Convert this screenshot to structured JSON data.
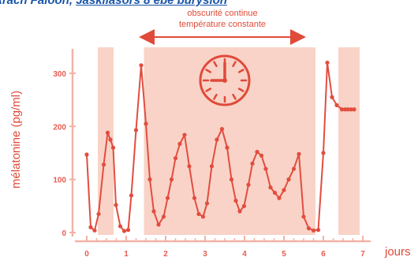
{
  "header": {
    "name": "Arach Faloon,",
    "rest": "Jaskilasors 8 ebe burysion"
  },
  "chart_data": {
    "type": "line",
    "title": "",
    "xlabel": "jours",
    "ylabel": "mélatonine (pg/ml)",
    "xlim": [
      -0.3,
      7.2
    ],
    "ylim": [
      -10,
      360
    ],
    "x_ticks": [
      0,
      1,
      2,
      3,
      4,
      5,
      6,
      7
    ],
    "x_tick_labels": [
      "0",
      "1",
      "2",
      "3",
      "4",
      "5",
      "6",
      "7"
    ],
    "y_ticks": [
      0,
      100,
      200,
      300
    ],
    "y_tick_labels": [
      "0",
      "100",
      "200",
      "300"
    ],
    "shaded_intervals_x": [
      [
        0.28,
        0.68
      ],
      [
        1.45,
        5.8
      ],
      [
        6.38,
        6.92
      ]
    ],
    "annotation": {
      "line1": "obscurité continue",
      "line2": "température constante",
      "x_range": [
        1.45,
        5.8
      ]
    },
    "series": [
      {
        "color": "#e24d3f",
        "x": [
          0.0,
          0.1,
          0.2,
          0.3,
          0.43,
          0.53,
          0.6,
          0.67,
          0.74,
          0.85,
          0.95,
          1.05,
          1.13,
          1.25,
          1.38,
          1.5,
          1.6,
          1.7,
          1.82,
          1.95,
          2.05,
          2.15,
          2.25,
          2.36,
          2.48,
          2.6,
          2.73,
          2.84,
          2.95,
          3.05,
          3.17,
          3.3,
          3.43,
          3.56,
          3.67,
          3.78,
          3.88,
          3.99,
          4.1,
          4.2,
          4.32,
          4.43,
          4.54,
          4.66,
          4.77,
          4.88,
          5.0,
          5.12,
          5.25,
          5.38,
          5.5,
          5.63,
          5.75,
          5.87,
          6.0,
          6.1,
          6.22,
          6.34,
          6.47,
          6.55,
          6.62,
          6.7,
          6.78
        ],
        "y": [
          147,
          10,
          4,
          35,
          128,
          188,
          175,
          160,
          52,
          12,
          3,
          5,
          70,
          193,
          315,
          205,
          100,
          40,
          15,
          30,
          65,
          100,
          140,
          167,
          184,
          125,
          65,
          35,
          30,
          55,
          125,
          175,
          195,
          160,
          100,
          60,
          40,
          50,
          90,
          130,
          152,
          145,
          120,
          85,
          75,
          65,
          80,
          100,
          120,
          148,
          30,
          8,
          4,
          5,
          150,
          320,
          255,
          240,
          232,
          232,
          232,
          232,
          232
        ]
      }
    ]
  }
}
